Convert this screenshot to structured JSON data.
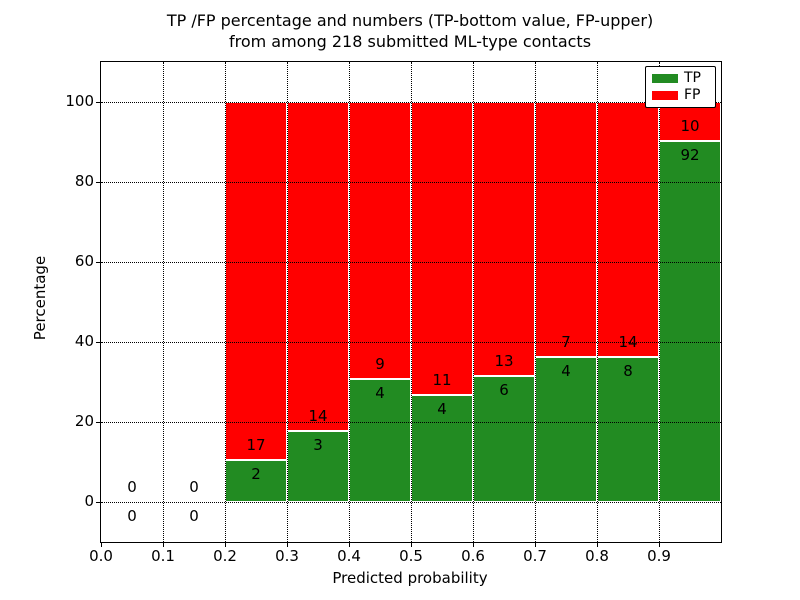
{
  "figure": {
    "title_line1": "TP /FP percentage and numbers (TP-bottom value, FP-upper)",
    "title_line2": "from among 218 submitted ML-type contacts"
  },
  "chart_data": {
    "type": "bar",
    "stacked": true,
    "normalized_to_percent": true,
    "title": "TP /FP percentage and numbers (TP-bottom value, FP-upper) from among 218 submitted ML-type contacts",
    "xlabel": "Predicted probability",
    "ylabel": "Percentage",
    "xlim": [
      0.0,
      1.0
    ],
    "ylim": [
      -10,
      110
    ],
    "x_tick_labels": [
      "0.0",
      "0.1",
      "0.2",
      "0.3",
      "0.4",
      "0.5",
      "0.6",
      "0.7",
      "0.8",
      "0.9"
    ],
    "y_tick_values": [
      0,
      20,
      40,
      60,
      80,
      100
    ],
    "y_tick_labels": [
      "0",
      "20",
      "40",
      "60",
      "80",
      "100"
    ],
    "grid": {
      "style": "dotted",
      "color": "#000000",
      "drawn_above_bars": true
    },
    "legend": {
      "position": "upper-right",
      "entries": [
        {
          "label": "TP",
          "color": "#228b22"
        },
        {
          "label": "FP",
          "color": "#ff0000"
        }
      ]
    },
    "total_contacts": 218,
    "bin_width": 0.1,
    "bins": [
      {
        "x_start": 0.0,
        "tp": 0,
        "fp": 0
      },
      {
        "x_start": 0.1,
        "tp": 0,
        "fp": 0
      },
      {
        "x_start": 0.2,
        "tp": 2,
        "fp": 17
      },
      {
        "x_start": 0.3,
        "tp": 3,
        "fp": 14
      },
      {
        "x_start": 0.4,
        "tp": 4,
        "fp": 9
      },
      {
        "x_start": 0.5,
        "tp": 4,
        "fp": 11
      },
      {
        "x_start": 0.6,
        "tp": 6,
        "fp": 13
      },
      {
        "x_start": 0.7,
        "tp": 4,
        "fp": 7
      },
      {
        "x_start": 0.8,
        "tp": 8,
        "fp": 14
      },
      {
        "x_start": 0.9,
        "tp": 92,
        "fp": 10
      }
    ]
  },
  "colors": {
    "tp_green": "#228b22",
    "fp_red": "#ff0000",
    "axis": "#000000",
    "background": "#ffffff"
  }
}
